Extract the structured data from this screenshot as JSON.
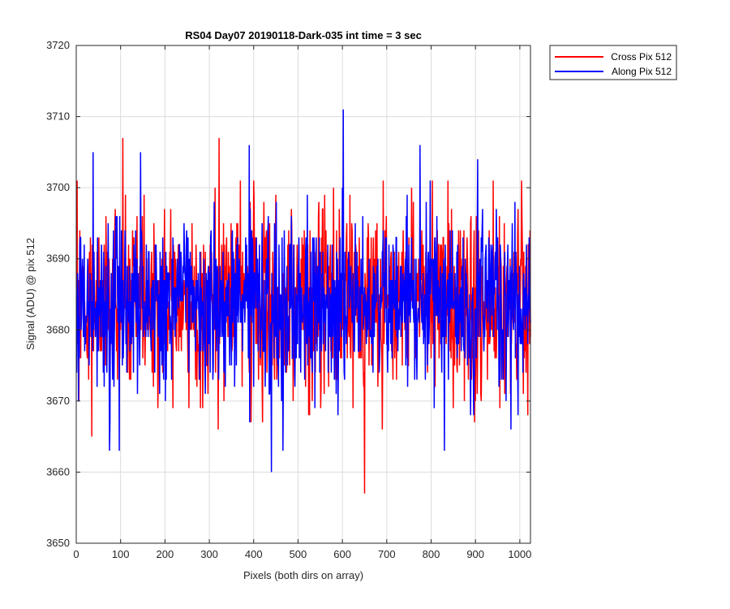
{
  "chart_data": {
    "type": "line",
    "title": "RS04 Day07 20190118-Dark-035 int time = 3 sec",
    "xlabel": "Pixels (both dirs on array)",
    "ylabel": "Signal (ADU) @ pix 512",
    "xlim": [
      0,
      1024
    ],
    "ylim": [
      3650,
      3720
    ],
    "xticks": [
      0,
      100,
      200,
      300,
      400,
      500,
      600,
      700,
      800,
      900,
      1000
    ],
    "yticks": [
      3650,
      3660,
      3670,
      3680,
      3690,
      3700,
      3710,
      3720
    ],
    "grid": true,
    "legend_position": "outside-top-right",
    "series": [
      {
        "name": "Cross Pix 512",
        "color": "#ff0000",
        "mean": 3684,
        "noise_sd": 6.5,
        "peaks": [
          [
            2,
            3701
          ],
          [
            105,
            3707
          ],
          [
            322,
            3707
          ],
          [
            555,
            3697
          ],
          [
            838,
            3701
          ]
        ],
        "troughs": [
          [
            35,
            3665
          ],
          [
            320,
            3666
          ],
          [
            420,
            3667
          ],
          [
            650,
            3657
          ],
          [
            690,
            3666
          ]
        ]
      },
      {
        "name": "Along Pix 512",
        "color": "#0000ff",
        "mean": 3684,
        "noise_sd": 6.0,
        "peaks": [
          [
            38,
            3705
          ],
          [
            145,
            3705
          ],
          [
            390,
            3706
          ],
          [
            602,
            3711
          ],
          [
            775,
            3706
          ],
          [
            905,
            3704
          ]
        ],
        "troughs": [
          [
            75,
            3663
          ],
          [
            97,
            3663
          ],
          [
            440,
            3660
          ],
          [
            466,
            3663
          ],
          [
            830,
            3663
          ],
          [
            980,
            3666
          ]
        ]
      }
    ]
  }
}
